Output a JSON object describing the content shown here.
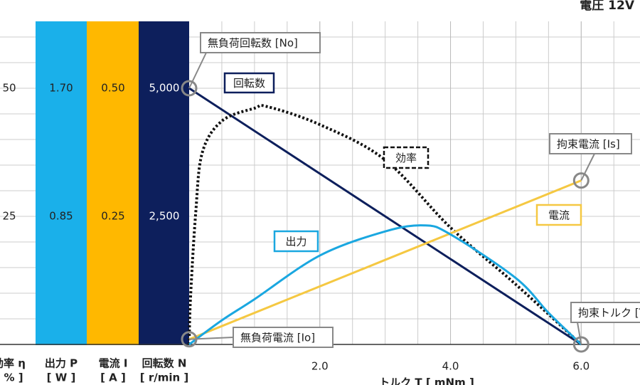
{
  "chart_data": {
    "type": "line",
    "title": "電圧 12V",
    "xlabel": "トルク T [ mNm ]",
    "xlim": [
      0,
      6.9
    ],
    "xticks": [
      {
        "value": 2,
        "label": "2.0"
      },
      {
        "value": 4,
        "label": "4.0"
      },
      {
        "value": 6,
        "label": "6.0"
      }
    ],
    "ylabel": "効率 η",
    "yunit": "[ % ]",
    "ylim": [
      0,
      62.5
    ],
    "yticks": [
      25,
      50
    ],
    "y2label": "出力 P",
    "y2unit": "[ W ]",
    "y2lim": [
      0,
      2.125
    ],
    "y2ticks": [
      {
        "value": 0.85,
        "label": "0.85"
      },
      {
        "value": 1.7,
        "label": "1.70"
      }
    ],
    "y3label": "電流 I",
    "y3unit": "[ A ]",
    "y3lim": [
      0,
      0.625
    ],
    "y3ticks": [
      {
        "value": 0.25,
        "label": "0.25"
      },
      {
        "value": 0.5,
        "label": "0.50"
      }
    ],
    "y4label": "回転数 N",
    "y4unit": "[ r/min ]",
    "y4lim": [
      0,
      6250
    ],
    "y4ticks": [
      {
        "value": 2500,
        "label": "2,500"
      },
      {
        "value": 5000,
        "label": "5,000"
      }
    ],
    "grid": true,
    "series": [
      {
        "name": "回転数",
        "color": "#0d1f5c",
        "axis": "y4",
        "x": [
          0,
          6
        ],
        "values": [
          5000,
          0
        ]
      },
      {
        "name": "効率",
        "color": "#111111",
        "axis": "y",
        "dashed": true,
        "x": [
          0,
          0.02,
          0.1,
          0.2,
          0.5,
          1,
          1.2,
          2,
          3,
          4,
          5,
          6
        ],
        "values": [
          0,
          8.9,
          25.6,
          37.4,
          43.6,
          46.1,
          46.4,
          42.9,
          36,
          22.8,
          11.7,
          0
        ]
      },
      {
        "name": "電流",
        "color": "#f5c842",
        "axis": "y3",
        "x": [
          0,
          6
        ],
        "values": [
          0.01,
          0.32
        ]
      },
      {
        "name": "出力",
        "color": "#1aa7e0",
        "axis": "y2",
        "x": [
          0,
          0.5,
          1,
          2,
          3,
          3.6,
          4,
          5,
          5.5,
          6
        ],
        "values": [
          0,
          0.16,
          0.3,
          0.59,
          0.75,
          0.79,
          0.73,
          0.44,
          0.21,
          0
        ]
      }
    ],
    "annotations": [
      "無負荷回転数 [No]",
      "無負荷電流 [Io]",
      "拘束電流 [Is]",
      "拘束トルク [Ts]"
    ]
  }
}
